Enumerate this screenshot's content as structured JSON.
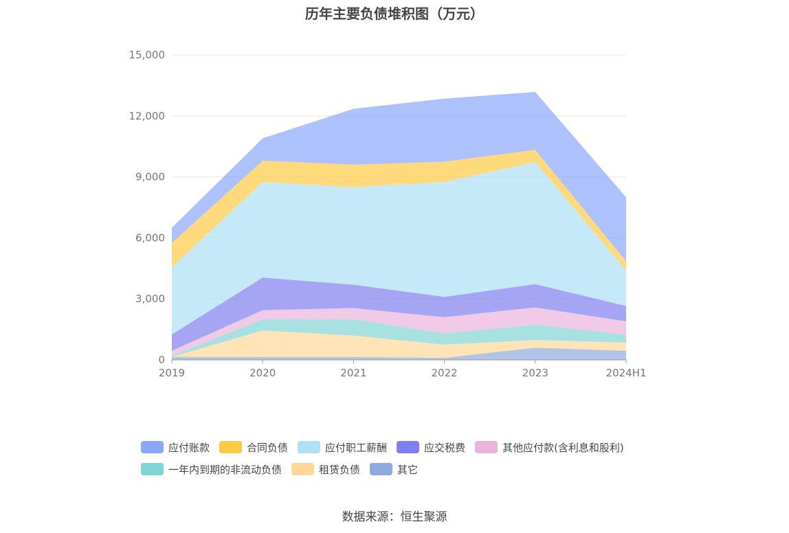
{
  "title": "历年主要负债堆积图（万元）",
  "source": "数据来源：恒生聚源",
  "chart_data": {
    "type": "area",
    "stacked": true,
    "title": "历年主要负债堆积图（万元）",
    "categories": [
      "2019",
      "2020",
      "2021",
      "2022",
      "2023",
      "2024H1"
    ],
    "ylim": [
      0,
      15000
    ],
    "yticks": [
      0,
      3000,
      6000,
      9000,
      12000,
      15000
    ],
    "ytick_labels": [
      "0",
      "3,000",
      "6,000",
      "9,000",
      "12,000",
      "15,000"
    ],
    "grid": true,
    "legend_position": "bottom",
    "series": [
      {
        "name": "其它",
        "color": "#8fabdd",
        "values": [
          150,
          150,
          150,
          100,
          600,
          450
        ]
      },
      {
        "name": "租赁负债",
        "color": "#fdd899",
        "values": [
          0,
          1300,
          1050,
          650,
          380,
          400
        ]
      },
      {
        "name": "一年内到期的非流动负债",
        "color": "#81d4d4",
        "values": [
          50,
          550,
          800,
          550,
          750,
          400
        ]
      },
      {
        "name": "其他应付款(含利息和股利)",
        "color": "#e9b3dc",
        "values": [
          250,
          450,
          550,
          800,
          850,
          650
        ]
      },
      {
        "name": "应交税费",
        "color": "#7f7ff0",
        "values": [
          800,
          1600,
          1150,
          1000,
          1150,
          750
        ]
      },
      {
        "name": "应付职工薪酬",
        "color": "#aee0f7",
        "values": [
          3300,
          4700,
          4800,
          5650,
          6000,
          1750
        ]
      },
      {
        "name": "合同负债",
        "color": "#fdca46",
        "values": [
          1200,
          1050,
          1100,
          1000,
          600,
          450
        ]
      },
      {
        "name": "应付账款",
        "color": "#8aa8fb",
        "values": [
          750,
          1100,
          2750,
          3100,
          2850,
          3150
        ]
      }
    ]
  },
  "legend": {
    "row1": [
      {
        "label": "应付账款",
        "color": "#8aa8fb"
      },
      {
        "label": "合同负债",
        "color": "#fdca46"
      },
      {
        "label": "应付职工薪酬",
        "color": "#aee0f7"
      },
      {
        "label": "应交税费",
        "color": "#7f7ff0"
      },
      {
        "label": "其他应付款(含利息和股利)",
        "color": "#e9b3dc"
      }
    ],
    "row2": [
      {
        "label": "一年内到期的非流动负债",
        "color": "#81d4d4"
      },
      {
        "label": "租赁负债",
        "color": "#fdd899"
      },
      {
        "label": "其它",
        "color": "#8fabdd"
      }
    ]
  }
}
